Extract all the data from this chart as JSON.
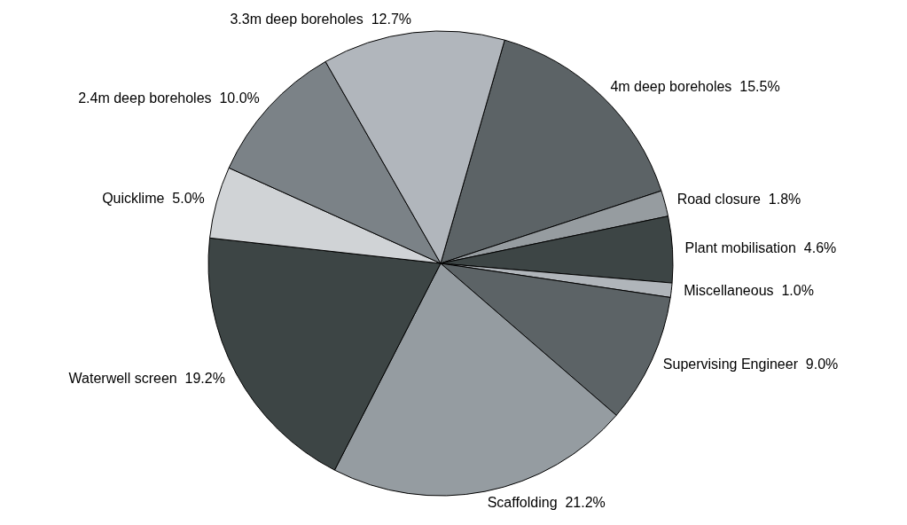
{
  "chart_data": {
    "type": "pie",
    "categories": [
      "4m deep boreholes",
      "Road closure",
      "Plant mobilisation",
      "Miscellaneous",
      "Supervising Engineer",
      "Scaffolding",
      "Waterwell screen",
      "Quicklime",
      "2.4m deep boreholes",
      "3.3m deep boreholes"
    ],
    "values": [
      15.5,
      1.8,
      4.6,
      1.0,
      9.0,
      21.2,
      19.2,
      5.0,
      10.0,
      12.7
    ],
    "value_labels": [
      "15.5%",
      "1.8%",
      "4.6%",
      "1.0%",
      "9.0%",
      "21.2%",
      "19.2%",
      "5.0%",
      "10.0%",
      "12.7%"
    ],
    "colors": [
      "#5c6366",
      "#969ca0",
      "#3d4545",
      "#b0b5ba",
      "#5c6366",
      "#959ca1",
      "#3d4545",
      "#d0d3d6",
      "#7b8287",
      "#b1b6bc"
    ],
    "legend": false
  }
}
